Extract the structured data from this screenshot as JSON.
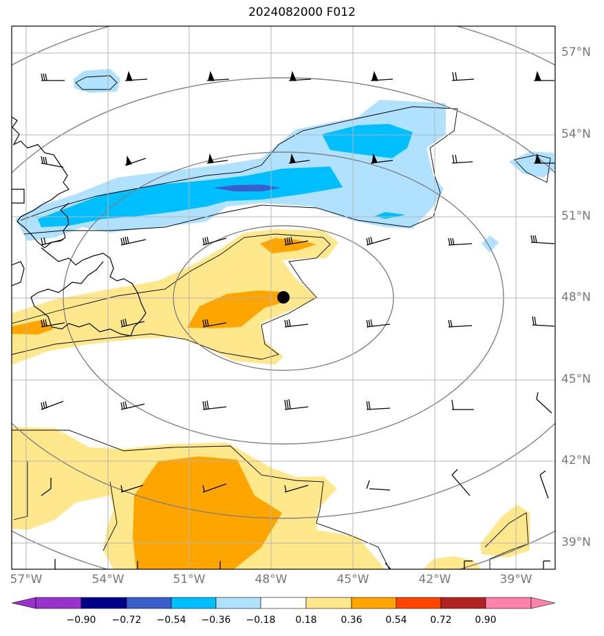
{
  "title": "2024082000 F012",
  "lat_labels": [
    "57°N",
    "54°N",
    "51°N",
    "48°N",
    "45°N",
    "42°N",
    "39°N"
  ],
  "lon_labels": [
    "57°W",
    "54°W",
    "51°W",
    "48°W",
    "45°W",
    "42°W",
    "39°W"
  ],
  "colorbar": {
    "labels": [
      "−0.90",
      "−0.72",
      "−0.54",
      "−0.36",
      "−0.18",
      "0.18",
      "0.36",
      "0.54",
      "0.72",
      "0.90"
    ],
    "colors": [
      "#9932cc",
      "#00008b",
      "#3a5fcd",
      "#00bfff",
      "#b0e2ff",
      "#ffffff",
      "#ffe88c",
      "#ffa500",
      "#ff4500",
      "#b22222",
      "#ff82ab"
    ]
  },
  "storm_center": {
    "lat": 48.0,
    "lon": -47.6
  }
}
